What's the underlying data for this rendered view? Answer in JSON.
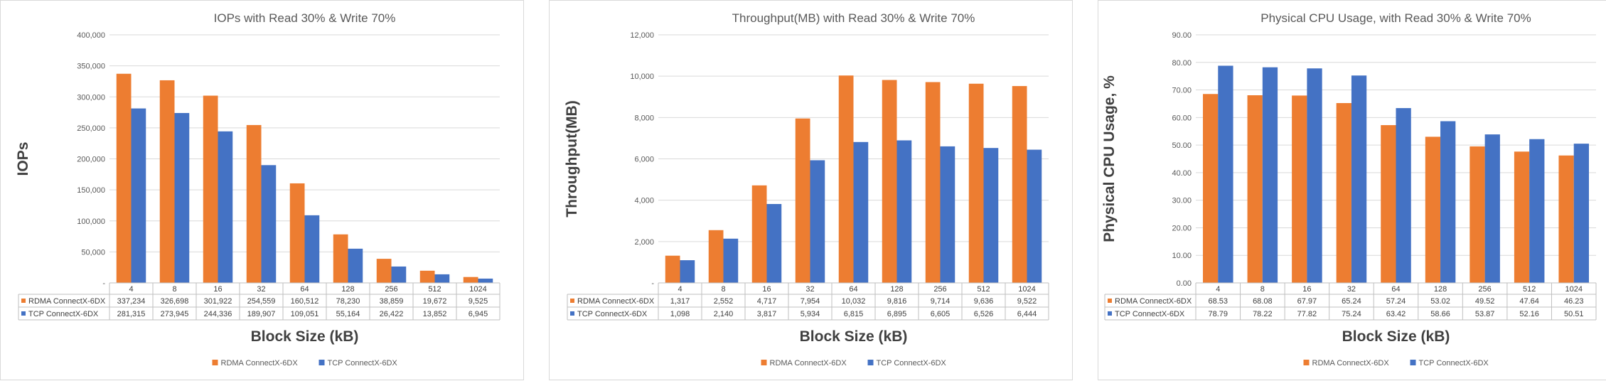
{
  "colors": {
    "rdma": "#ED7D31",
    "tcp": "#4472C4",
    "grid": "#D9D9D9",
    "axis": "#BFBFBF"
  },
  "chart_data": [
    {
      "type": "bar",
      "title": "IOPs with Read 30% & Write 70%",
      "xlabel": "Block Size (kB)",
      "ylabel": "IOPs",
      "ylim": [
        0,
        400000
      ],
      "yticks": [
        "-",
        "50,000",
        "100,000",
        "150,000",
        "200,000",
        "250,000",
        "300,000",
        "350,000",
        "400,000"
      ],
      "grid": true,
      "legend_position": "bottom",
      "categories": [
        "4",
        "8",
        "16",
        "32",
        "64",
        "128",
        "256",
        "512",
        "1024"
      ],
      "series": [
        {
          "name": "RDMA ConnectX-6DX",
          "values": [
            337234,
            326698,
            301922,
            254559,
            160512,
            78230,
            38859,
            19672,
            9525
          ],
          "labels": [
            "337,234",
            "326,698",
            "301,922",
            "254,559",
            "160,512",
            "78,230",
            "38,859",
            "19,672",
            "9,525"
          ]
        },
        {
          "name": "TCP ConnectX-6DX",
          "values": [
            281315,
            273945,
            244336,
            189907,
            109051,
            55164,
            26422,
            13852,
            6945
          ],
          "labels": [
            "281,315",
            "273,945",
            "244,336",
            "189,907",
            "109,051",
            "55,164",
            "26,422",
            "13,852",
            "6,945"
          ]
        }
      ]
    },
    {
      "type": "bar",
      "title": "Throughput(MB) with Read 30% & Write 70%",
      "xlabel": "Block Size (kB)",
      "ylabel": "Throughput(MB)",
      "ylim": [
        0,
        12000
      ],
      "yticks": [
        "-",
        "2,000",
        "4,000",
        "6,000",
        "8,000",
        "10,000",
        "12,000"
      ],
      "grid": true,
      "legend_position": "bottom",
      "categories": [
        "4",
        "8",
        "16",
        "32",
        "64",
        "128",
        "256",
        "512",
        "1024"
      ],
      "series": [
        {
          "name": "RDMA ConnectX-6DX",
          "values": [
            1317,
            2552,
            4717,
            7954,
            10032,
            9816,
            9714,
            9636,
            9522
          ],
          "labels": [
            "1,317",
            "2,552",
            "4,717",
            "7,954",
            "10,032",
            "9,816",
            "9,714",
            "9,636",
            "9,522"
          ]
        },
        {
          "name": "TCP ConnectX-6DX",
          "values": [
            1098,
            2140,
            3817,
            5934,
            6815,
            6895,
            6605,
            6526,
            6444
          ],
          "labels": [
            "1,098",
            "2,140",
            "3,817",
            "5,934",
            "6,815",
            "6,895",
            "6,605",
            "6,526",
            "6,444"
          ]
        }
      ]
    },
    {
      "type": "bar",
      "title": "Physical CPU Usage, with Read 30% & Write 70%",
      "xlabel": "Block Size (kB)",
      "ylabel": "Physical CPU Usage, %",
      "ylim": [
        0,
        90
      ],
      "yticks": [
        "0.00",
        "10.00",
        "20.00",
        "30.00",
        "40.00",
        "50.00",
        "60.00",
        "70.00",
        "80.00",
        "90.00"
      ],
      "grid": true,
      "legend_position": "bottom",
      "categories": [
        "4",
        "8",
        "16",
        "32",
        "64",
        "128",
        "256",
        "512",
        "1024"
      ],
      "series": [
        {
          "name": "RDMA ConnectX-6DX",
          "values": [
            68.53,
            68.08,
            67.97,
            65.24,
            57.24,
            53.02,
            49.52,
            47.64,
            46.23
          ],
          "labels": [
            "68.53",
            "68.08",
            "67.97",
            "65.24",
            "57.24",
            "53.02",
            "49.52",
            "47.64",
            "46.23"
          ]
        },
        {
          "name": "TCP ConnectX-6DX",
          "values": [
            78.79,
            78.22,
            77.82,
            75.24,
            63.42,
            58.66,
            53.87,
            52.16,
            50.51
          ],
          "labels": [
            "78.79",
            "78.22",
            "77.82",
            "75.24",
            "63.42",
            "58.66",
            "53.87",
            "52.16",
            "50.51"
          ]
        }
      ]
    }
  ]
}
